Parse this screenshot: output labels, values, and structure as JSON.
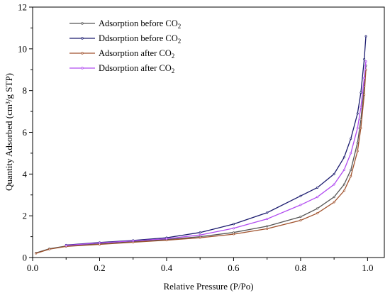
{
  "chart_data": {
    "type": "line",
    "xlabel": "Relative Pressure (P/Po)",
    "ylabel": "Quantity Adsorbed (cm³/g STP)",
    "xlim": [
      0.0,
      1.05
    ],
    "ylim": [
      0,
      12
    ],
    "xticks": [
      "0.0",
      "0.2",
      "0.4",
      "0.6",
      "0.8",
      "1.0"
    ],
    "yticks": [
      "0",
      "2",
      "4",
      "6",
      "8",
      "10",
      "12"
    ],
    "grid": false,
    "legend_position": "top-left",
    "series": [
      {
        "name": "Adsorption before CO",
        "name_subscript": "2",
        "color": "#555555",
        "points": [
          [
            0.01,
            0.22
          ],
          [
            0.05,
            0.42
          ],
          [
            0.1,
            0.55
          ],
          [
            0.2,
            0.66
          ],
          [
            0.3,
            0.76
          ],
          [
            0.4,
            0.86
          ],
          [
            0.5,
            1.0
          ],
          [
            0.6,
            1.2
          ],
          [
            0.7,
            1.5
          ],
          [
            0.8,
            1.95
          ],
          [
            0.85,
            2.35
          ],
          [
            0.9,
            2.9
          ],
          [
            0.93,
            3.5
          ],
          [
            0.95,
            4.2
          ],
          [
            0.97,
            5.5
          ],
          [
            0.98,
            6.6
          ],
          [
            0.99,
            8.2
          ],
          [
            0.995,
            9.2
          ]
        ]
      },
      {
        "name": "Ddsorption before CO",
        "name_subscript": "2",
        "color": "#1a1a6e",
        "points": [
          [
            0.995,
            10.6
          ],
          [
            0.99,
            9.5
          ],
          [
            0.98,
            7.9
          ],
          [
            0.97,
            6.9
          ],
          [
            0.95,
            5.7
          ],
          [
            0.93,
            4.8
          ],
          [
            0.9,
            4.0
          ],
          [
            0.85,
            3.35
          ],
          [
            0.8,
            2.95
          ],
          [
            0.7,
            2.15
          ],
          [
            0.6,
            1.6
          ],
          [
            0.5,
            1.2
          ],
          [
            0.4,
            0.95
          ],
          [
            0.3,
            0.82
          ],
          [
            0.2,
            0.72
          ],
          [
            0.1,
            0.6
          ]
        ]
      },
      {
        "name": "Adsorption after CO",
        "name_subscript": "2",
        "color": "#a0522d",
        "points": [
          [
            0.01,
            0.2
          ],
          [
            0.05,
            0.4
          ],
          [
            0.1,
            0.53
          ],
          [
            0.2,
            0.63
          ],
          [
            0.3,
            0.73
          ],
          [
            0.4,
            0.83
          ],
          [
            0.5,
            0.95
          ],
          [
            0.6,
            1.12
          ],
          [
            0.7,
            1.38
          ],
          [
            0.8,
            1.78
          ],
          [
            0.85,
            2.12
          ],
          [
            0.9,
            2.65
          ],
          [
            0.93,
            3.2
          ],
          [
            0.95,
            3.9
          ],
          [
            0.97,
            5.1
          ],
          [
            0.98,
            6.2
          ],
          [
            0.99,
            7.8
          ],
          [
            0.995,
            9.0
          ]
        ]
      },
      {
        "name": "Ddsorption after CO",
        "name_subscript": "2",
        "color": "#b14cf0",
        "points": [
          [
            0.995,
            9.4
          ],
          [
            0.99,
            8.6
          ],
          [
            0.98,
            7.2
          ],
          [
            0.97,
            6.2
          ],
          [
            0.95,
            5.0
          ],
          [
            0.93,
            4.2
          ],
          [
            0.9,
            3.5
          ],
          [
            0.85,
            2.9
          ],
          [
            0.8,
            2.52
          ],
          [
            0.7,
            1.85
          ],
          [
            0.6,
            1.4
          ],
          [
            0.5,
            1.08
          ],
          [
            0.4,
            0.9
          ],
          [
            0.3,
            0.8
          ],
          [
            0.2,
            0.7
          ],
          [
            0.1,
            0.58
          ]
        ]
      }
    ]
  }
}
